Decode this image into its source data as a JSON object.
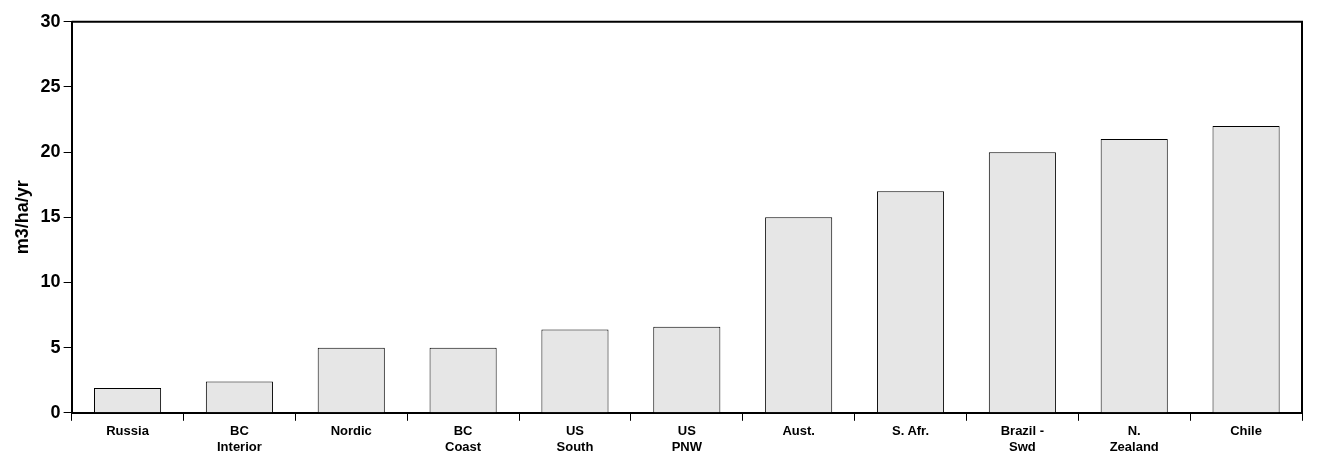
{
  "chart_data": {
    "type": "bar",
    "ylabel": "m3/ha/yr",
    "categories": [
      "Russia",
      "BC\nInterior",
      "Nordic",
      "BC\nCoast",
      "US\nSouth",
      "US\nPNW",
      "Aust.",
      "S. Afr.",
      "Brazil -\nSwd",
      "N.\nZealand",
      "Chile"
    ],
    "values": [
      1.9,
      2.4,
      5,
      5,
      6.4,
      6.6,
      15,
      17,
      20,
      21,
      22
    ],
    "color": "#e6e6e6",
    "ylim": [
      0,
      30
    ],
    "yticks": [
      0,
      5,
      10,
      15,
      20,
      25,
      30
    ],
    "grid": false,
    "legend": false
  }
}
